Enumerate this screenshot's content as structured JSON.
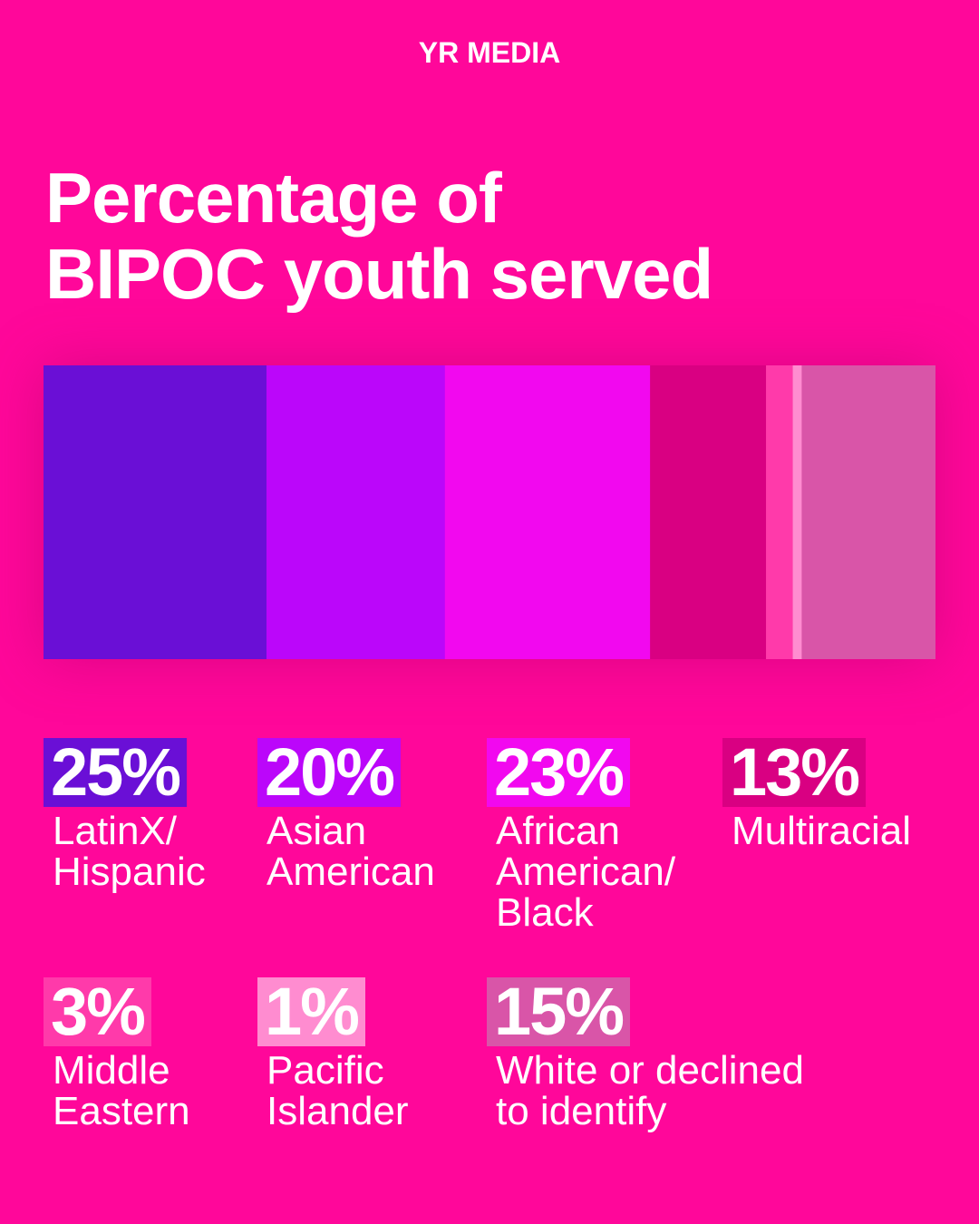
{
  "brand": "YR MEDIA",
  "title_lines": [
    "Percentage of",
    "BIPOC youth served"
  ],
  "chart_data": {
    "type": "bar",
    "orientation": "stacked-horizontal",
    "title": "Percentage of BIPOC youth served",
    "unit": "%",
    "categories": [
      "LatinX/ Hispanic",
      "Asian American",
      "African American/ Black",
      "Multiracial",
      "Middle Eastern",
      "Pacific Islander",
      "White or declined to identify"
    ],
    "values": [
      25,
      20,
      23,
      13,
      3,
      1,
      15
    ],
    "colors": [
      "#6a0fd6",
      "#bb06fa",
      "#f208ef",
      "#d90082",
      "#ff3aaa",
      "#ff8cd0",
      "#d955a8"
    ],
    "legend": [
      {
        "pct": "25%",
        "label_lines": [
          "LatinX/",
          "Hispanic"
        ]
      },
      {
        "pct": "20%",
        "label_lines": [
          "Asian",
          "American"
        ]
      },
      {
        "pct": "23%",
        "label_lines": [
          "African",
          "American/",
          "Black"
        ]
      },
      {
        "pct": "13%",
        "label_lines": [
          "Multiracial"
        ]
      },
      {
        "pct": "3%",
        "label_lines": [
          "Middle",
          "Eastern"
        ]
      },
      {
        "pct": "1%",
        "label_lines": [
          "Pacific",
          "Islander"
        ]
      },
      {
        "pct": "15%",
        "label_lines": [
          "White or declined",
          "to identify"
        ]
      }
    ]
  }
}
